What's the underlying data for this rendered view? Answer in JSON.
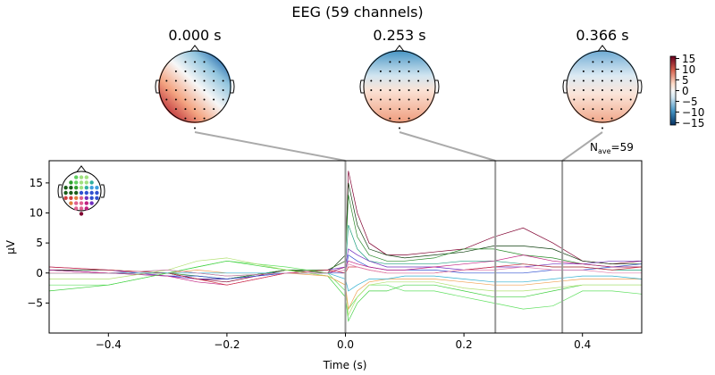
{
  "figure": {
    "title": "EEG (59 channels)",
    "nave_label": "N",
    "nave_sub": "ave",
    "nave_value": "=59"
  },
  "topomaps": [
    {
      "time_label": "0.000 s",
      "time": 0.0,
      "pattern": "red lower-left, blue upper-right"
    },
    {
      "time_label": "0.253 s",
      "time": 0.253,
      "pattern": "blue top, light red bottom"
    },
    {
      "time_label": "0.366 s",
      "time": 0.366,
      "pattern": "light blue top, light red bottom"
    }
  ],
  "colorbar": {
    "colormap": "RdBu_r",
    "range": [
      -15,
      15
    ],
    "ticks": [
      "15",
      "10",
      "5",
      "0",
      "−5",
      "−10",
      "−15"
    ],
    "tick_values": [
      15,
      10,
      5,
      0,
      -5,
      -10,
      -15
    ]
  },
  "chart_data": {
    "type": "line",
    "title": "EEG (59 channels)",
    "xlabel": "Time (s)",
    "ylabel": "µV",
    "xlim": [
      -0.5,
      0.5
    ],
    "ylim": [
      -10,
      18.7
    ],
    "xticks": [
      -0.4,
      -0.2,
      0.0,
      0.2,
      0.4
    ],
    "xtick_labels": [
      "−0.4",
      "−0.2",
      "0.0",
      "0.2",
      "0.4"
    ],
    "yticks": [
      -5,
      0,
      5,
      10,
      15
    ],
    "ytick_labels": [
      "−5",
      "0",
      "5",
      "10",
      "15"
    ],
    "grid": false,
    "legend": "sensor-position inset, top-left",
    "markers_at": [
      0.0,
      0.253,
      0.366
    ],
    "x": [
      -0.5,
      -0.4,
      -0.3,
      -0.25,
      -0.2,
      -0.1,
      -0.03,
      0,
      0.005,
      0.02,
      0.04,
      0.07,
      0.1,
      0.15,
      0.2,
      0.25,
      0.3,
      0.35,
      0.4,
      0.45,
      0.5
    ],
    "series": [
      {
        "color": "#800030",
        "values": [
          0.5,
          0,
          0,
          -1,
          -1.5,
          0.5,
          0.5,
          2,
          17,
          10,
          5,
          3,
          3,
          3.5,
          4,
          6,
          7.5,
          5,
          2,
          1.5,
          2
        ]
      },
      {
        "color": "#104010",
        "values": [
          0.5,
          0.5,
          0,
          -1,
          -1,
          0.5,
          0,
          3,
          15,
          8,
          4,
          3,
          2.5,
          3,
          3.5,
          4.5,
          4.5,
          4,
          2,
          1.5,
          1.5
        ]
      },
      {
        "color": "#2a8a2a",
        "values": [
          0,
          0,
          0,
          -0.5,
          -1,
          0.5,
          0.5,
          2,
          13,
          6,
          3,
          2,
          2,
          2.5,
          4,
          4,
          3,
          2.5,
          1.5,
          1,
          1
        ]
      },
      {
        "color": "#20a080",
        "values": [
          0,
          0,
          0.5,
          0,
          -0.5,
          0,
          0,
          1,
          8,
          4,
          2,
          1.5,
          1.5,
          1.5,
          2,
          2,
          1.5,
          1,
          1,
          0.5,
          0.5
        ]
      },
      {
        "color": "#7030c0",
        "values": [
          1,
          0.5,
          -0.5,
          -1,
          -1,
          0,
          0.5,
          1,
          4,
          3,
          2,
          1,
          1,
          1,
          0.5,
          1,
          1,
          1.5,
          1.5,
          2,
          2
        ]
      },
      {
        "color": "#3050d0",
        "values": [
          0.5,
          0,
          -0.5,
          -0.5,
          -1,
          0,
          0,
          0,
          3,
          2,
          1,
          0.5,
          0.5,
          0.5,
          0,
          0,
          0,
          0.5,
          0.5,
          1,
          1.5
        ]
      },
      {
        "color": "#c02080",
        "values": [
          0.5,
          0,
          -0.5,
          -1.5,
          -2,
          0,
          0,
          1,
          2,
          1.5,
          1,
          0.5,
          0.5,
          1,
          1.5,
          2,
          3,
          2,
          1.5,
          1,
          1
        ]
      },
      {
        "color": "#d03040",
        "values": [
          1,
          0.5,
          0,
          -1,
          -2,
          0,
          0.5,
          0,
          1,
          1,
          0.5,
          0,
          0,
          0,
          0.5,
          1,
          1.5,
          1,
          1,
          0.5,
          1
        ]
      },
      {
        "color": "#60e060",
        "values": [
          -2,
          -2,
          0,
          1,
          2,
          1,
          0,
          -3,
          -6,
          -4,
          -2,
          -2,
          -3,
          -3,
          -4,
          -5,
          -6,
          -5.5,
          -3,
          -3,
          -3.5
        ]
      },
      {
        "color": "#40d040",
        "values": [
          -3,
          -2,
          0,
          1,
          2,
          0.5,
          -0.5,
          -4,
          -8,
          -5,
          -3,
          -3,
          -2,
          -2,
          -3,
          -4,
          -4,
          -3,
          -2,
          -2,
          -2
        ]
      },
      {
        "color": "#b0e070",
        "values": [
          -1,
          -1,
          0.5,
          2,
          2.5,
          0.5,
          -0.5,
          -2,
          -7,
          -4,
          -2,
          -1.5,
          -1.5,
          -1.5,
          -2.5,
          -3,
          -3,
          -2.5,
          -2,
          -2,
          -2
        ]
      },
      {
        "color": "#f0a050",
        "values": [
          0,
          0,
          0,
          0.5,
          0,
          0,
          -0.5,
          -2,
          -6,
          -3,
          -1.5,
          -1,
          -1,
          -1,
          -1.5,
          -2,
          -2,
          -1.5,
          -1,
          -1,
          -1
        ]
      },
      {
        "color": "#30b0d0",
        "values": [
          0,
          0,
          0,
          0,
          0,
          0,
          0,
          -1,
          -3,
          -2,
          -1,
          -1,
          -0.5,
          -0.5,
          -1,
          -1.5,
          -1.5,
          -1,
          -0.5,
          -0.5,
          -1
        ]
      },
      {
        "color": "#e080b0",
        "values": [
          0,
          0,
          0.5,
          0,
          -0.5,
          0,
          0,
          0.5,
          1.5,
          1,
          0.5,
          0,
          0,
          0,
          0.5,
          0.5,
          1,
          0.5,
          0.5,
          0,
          0
        ]
      }
    ]
  }
}
